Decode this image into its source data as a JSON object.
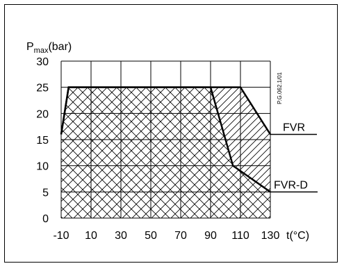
{
  "chart_data": {
    "type": "area",
    "ylabel_main": "P",
    "ylabel_sub": "max",
    "ylabel_unit": "(bar)",
    "xlabel": "t(°C)",
    "doc_code": "P.G.062.1/01",
    "xlim": [
      -10,
      130
    ],
    "ylim": [
      0,
      30
    ],
    "x_ticks": [
      -10,
      10,
      30,
      50,
      70,
      90,
      110,
      130
    ],
    "y_ticks": [
      0,
      5,
      10,
      15,
      20,
      25,
      30
    ],
    "grid": true,
    "series": [
      {
        "name": "FVR",
        "points": [
          [
            -10,
            16
          ],
          [
            -5,
            25
          ],
          [
            110,
            25
          ],
          [
            130,
            16
          ]
        ]
      },
      {
        "name": "FVR-D",
        "points": [
          [
            -10,
            16
          ],
          [
            -5,
            25
          ],
          [
            90,
            25
          ],
          [
            105,
            10
          ],
          [
            130,
            5
          ]
        ]
      }
    ]
  }
}
